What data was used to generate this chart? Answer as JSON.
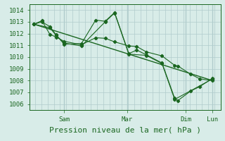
{
  "bg_color": "#d8ece8",
  "grid_color": "#b0cccc",
  "line_color": "#1a6620",
  "marker_color": "#1a6620",
  "xlabel": "Pression niveau de la mer( hPa )",
  "xlabel_fontsize": 8,
  "tick_fontsize": 6.5,
  "ylim": [
    1005.5,
    1014.5
  ],
  "yticks": [
    1006,
    1007,
    1008,
    1009,
    1010,
    1011,
    1012,
    1013,
    1014
  ],
  "series": [
    [
      0.05,
      1012.8,
      0.3,
      1013.0,
      0.55,
      1012.6,
      0.75,
      1011.9,
      1.0,
      1011.1,
      1.55,
      1011.15,
      2.0,
      1013.15,
      2.3,
      1013.05,
      2.6,
      1013.8,
      3.05,
      1010.3,
      3.3,
      1010.6,
      3.6,
      1010.2,
      4.1,
      1009.5,
      4.5,
      1006.5,
      4.6,
      1006.3,
      5.0,
      1007.1,
      5.3,
      1007.5,
      5.7,
      1008.2
    ],
    [
      0.05,
      1012.8,
      0.55,
      1012.5,
      0.75,
      1011.85,
      1.0,
      1011.2,
      1.55,
      1010.95,
      2.3,
      1013.0,
      2.6,
      1013.75,
      3.05,
      1010.25,
      3.6,
      1010.15,
      4.1,
      1009.45,
      4.5,
      1006.4,
      5.7,
      1008.15
    ],
    [
      0.05,
      1012.8,
      0.3,
      1013.1,
      0.55,
      1011.95,
      0.75,
      1011.7,
      1.0,
      1011.35,
      1.55,
      1011.05,
      2.0,
      1011.65,
      2.3,
      1011.6,
      2.6,
      1011.3,
      3.05,
      1010.95,
      3.3,
      1010.9,
      3.6,
      1010.45,
      4.1,
      1010.1,
      4.5,
      1009.3,
      4.6,
      1009.25,
      5.0,
      1008.55,
      5.3,
      1008.15,
      5.7,
      1008.0
    ],
    [
      0.05,
      1012.8,
      5.7,
      1008.0
    ]
  ],
  "day_vlines": [
    1.0,
    3.0,
    4.85,
    5.7
  ],
  "xlim": [
    -0.1,
    5.95
  ],
  "xtick_positions": [
    1.0,
    3.0,
    4.85,
    5.7
  ],
  "xtick_labels": [
    "Sam",
    "Mar",
    "Dim",
    "Lun"
  ]
}
